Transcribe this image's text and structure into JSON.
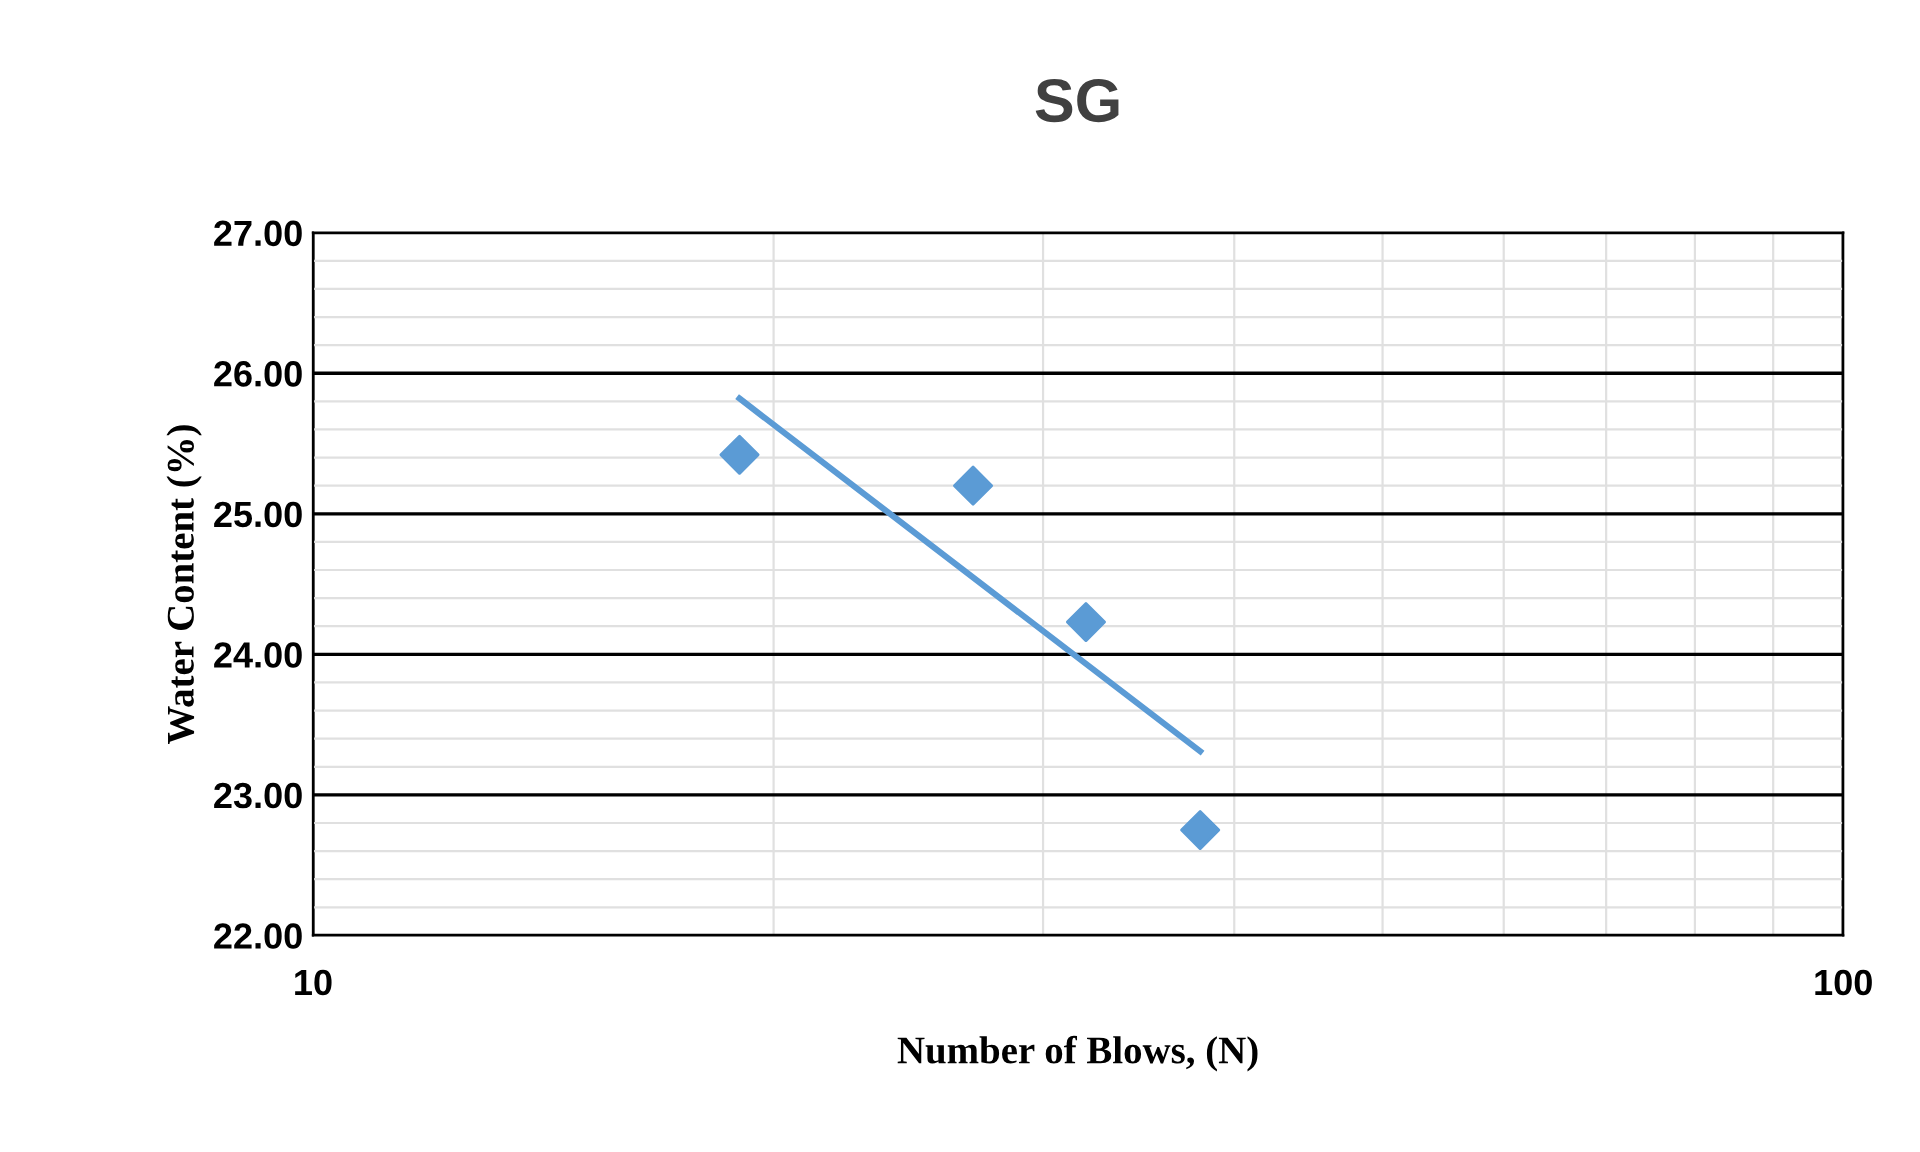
{
  "chart_data": {
    "type": "scatter",
    "title": "SG",
    "xlabel": "Number of Blows, (N)",
    "ylabel": "Water Content (%)",
    "log": "x",
    "xlim": [
      10,
      100
    ],
    "xticks": [
      10,
      100
    ],
    "ylim": [
      22,
      27
    ],
    "yticks": [
      {
        "value": 22,
        "label": "22.00"
      },
      {
        "value": 23,
        "label": "23.00"
      },
      {
        "value": 24,
        "label": "24.00"
      },
      {
        "value": 25,
        "label": "25.00"
      },
      {
        "value": 26,
        "label": "26.00"
      },
      {
        "value": 27,
        "label": "27.00"
      }
    ],
    "grid": true,
    "marker": "diamond",
    "series": [
      {
        "color": "#5b9bd5",
        "x": [
          19,
          27,
          32,
          38
        ],
        "values": [
          25.42,
          25.2,
          24.23,
          22.75
        ]
      },
      {
        "type": "line",
        "color": "#5b9bd5",
        "marker": "none",
        "x": [
          19,
          38
        ],
        "values": [
          25.82,
          23.31
        ]
      }
    ]
  }
}
